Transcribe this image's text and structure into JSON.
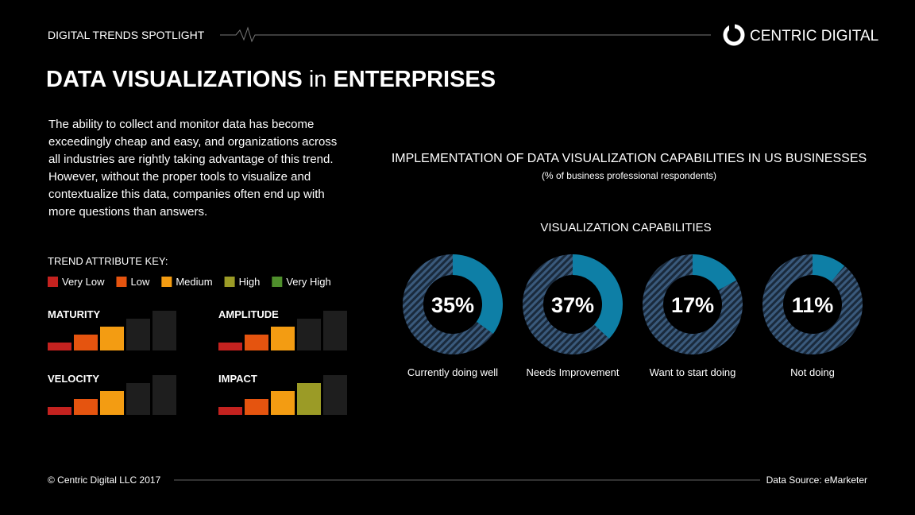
{
  "header": {
    "series_name": "DIGITAL TRENDS SPOTLIGHT",
    "brand": "CENTRIC DIGITAL"
  },
  "title_parts": [
    "DATA VISUALIZATIONS",
    "in",
    "ENTERPRISES"
  ],
  "intro_lines": [
    "The ability to collect and monitor data has become",
    "exceedingly cheap and easy, and organizations across",
    "all industries are rightly taking advantage of this trend.",
    "However, without the proper tools to visualize and",
    "contextualize this data, companies often end up with",
    "more questions than answers."
  ],
  "key": {
    "title": "TREND ATTRIBUTE KEY:",
    "levels": [
      {
        "name": "Very Low",
        "color": "#c4221f"
      },
      {
        "name": "Low",
        "color": "#e5540f"
      },
      {
        "name": "Medium",
        "color": "#f39c12"
      },
      {
        "name": "High",
        "color": "#9b9b26"
      },
      {
        "name": "Very High",
        "color": "#4f8f2c"
      }
    ]
  },
  "attributes": [
    {
      "name": "MATURITY",
      "level": 3
    },
    {
      "name": "AMPLITUDE",
      "level": 3
    },
    {
      "name": "VELOCITY",
      "level": 3
    },
    {
      "name": "IMPACT",
      "level": 4
    }
  ],
  "chart_data": {
    "type": "donut",
    "title": "IMPLEMENTATION OF DATA VISUALIZATION CAPABILITIES IN US BUSINESSES",
    "subtitle": "(% of business professional respondents)",
    "section_label": "VISUALIZATION CAPABILITIES",
    "categories": [
      "Currently doing well",
      "Needs Improvement",
      "Want to start doing",
      "Not doing"
    ],
    "values": [
      35,
      37,
      17,
      11
    ],
    "value_labels": [
      "35%",
      "37%",
      "17%",
      "11%"
    ],
    "color": "#0e7fa6"
  },
  "footer": {
    "copyright": "© Centric Digital LLC 2017",
    "source": "Data Source: eMarketer"
  }
}
